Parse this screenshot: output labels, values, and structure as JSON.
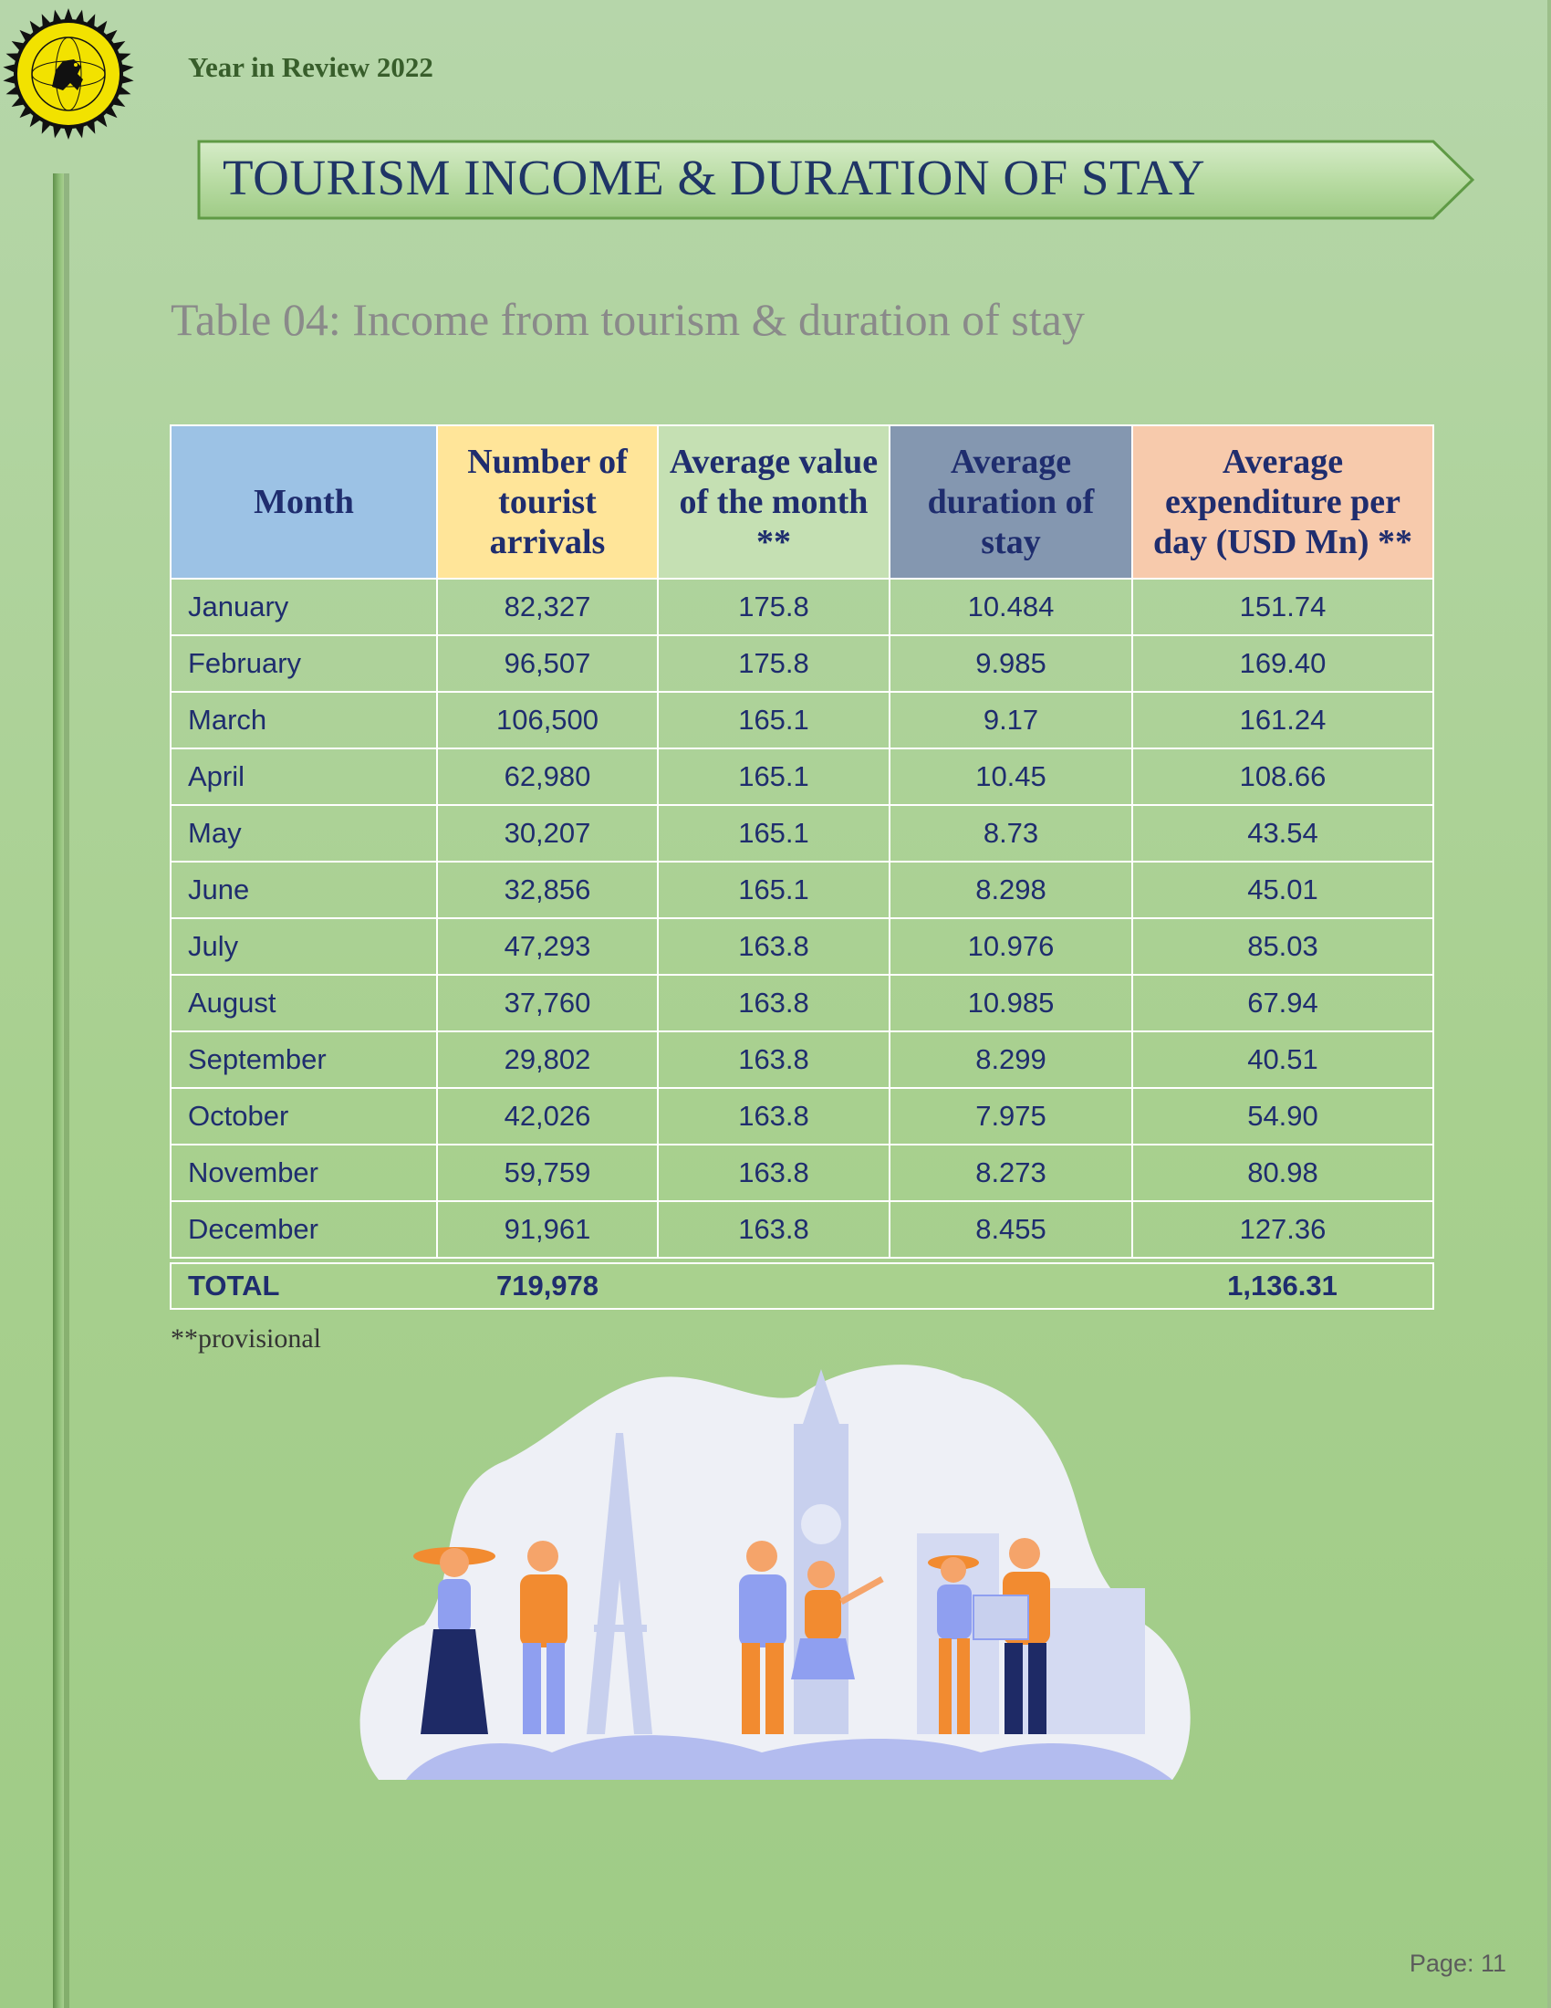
{
  "header": {
    "year_in_review": "Year in Review 2022",
    "banner_title": "TOURISM INCOME & DURATION OF STAY"
  },
  "table": {
    "caption": "Table 04: Income from tourism & duration of stay",
    "columns": [
      "Month",
      "Number of tourist arrivals",
      "Average value of the month **",
      "Average duration of stay",
      "Average expenditure per day (USD Mn) **"
    ],
    "header_colors": [
      "#9cc2e5",
      "#ffe599",
      "#c5e0b3",
      "#8497b0",
      "#f7caac"
    ],
    "rows": [
      [
        "January",
        "82,327",
        "175.8",
        "10.484",
        "151.74"
      ],
      [
        "February",
        "96,507",
        "175.8",
        "9.985",
        "169.40"
      ],
      [
        "March",
        "106,500",
        "165.1",
        "9.17",
        "161.24"
      ],
      [
        "April",
        "62,980",
        "165.1",
        "10.45",
        "108.66"
      ],
      [
        "May",
        "30,207",
        "165.1",
        "8.73",
        "43.54"
      ],
      [
        "June",
        "32,856",
        "165.1",
        "8.298",
        "45.01"
      ],
      [
        "July",
        "47,293",
        "163.8",
        "10.976",
        "85.03"
      ],
      [
        "August",
        "37,760",
        "163.8",
        "10.985",
        "67.94"
      ],
      [
        "September",
        "29,802",
        "163.8",
        "8.299",
        "40.51"
      ],
      [
        "October",
        "42,026",
        "163.8",
        "7.975",
        "54.90"
      ],
      [
        "November",
        "59,759",
        "163.8",
        "8.273",
        "80.98"
      ],
      [
        "December",
        "91,961",
        "163.8",
        "8.455",
        "127.36"
      ]
    ],
    "total": {
      "label": "TOTAL",
      "arrivals": "719,978",
      "expenditure": "1,136.31"
    }
  },
  "footnote": "**provisional",
  "page_number": "Page: 11",
  "colors": {
    "background": "#a8d08f",
    "title_text": "#1f3566",
    "table_text": "#1f2d6e"
  }
}
